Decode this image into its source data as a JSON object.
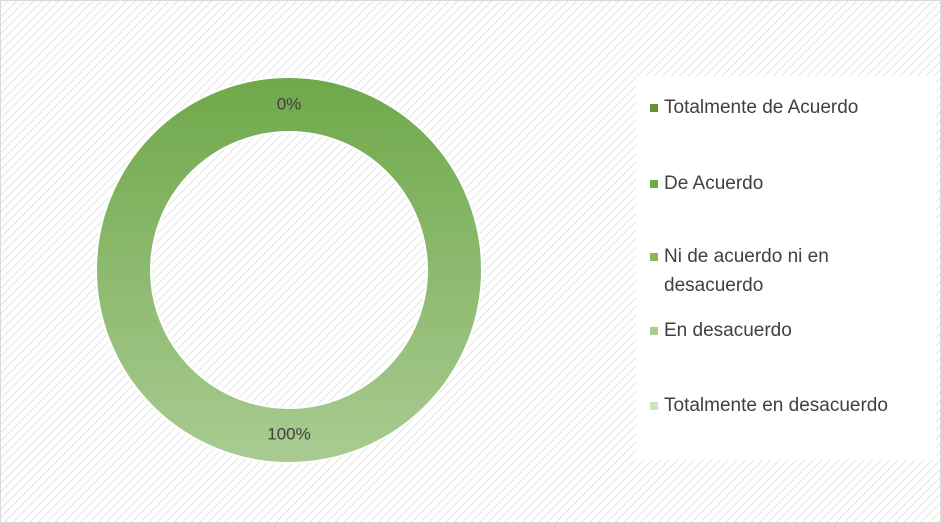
{
  "chart_data": {
    "type": "donut",
    "categories": [
      "Totalmente de Acuerdo",
      "De Acuerdo",
      "Ni de acuerdo ni en desacuerdo",
      "En desacuerdo",
      "Totalmente en desacuerdo"
    ],
    "values": [
      0,
      100,
      null,
      null,
      null
    ],
    "value_labels": [
      "0%",
      "100%",
      null,
      null,
      null
    ],
    "colors": [
      "#5e9438",
      "#6fa84a",
      "#82ba5e",
      "#a9cd93",
      "#cbe3bb"
    ],
    "legend": "right"
  }
}
